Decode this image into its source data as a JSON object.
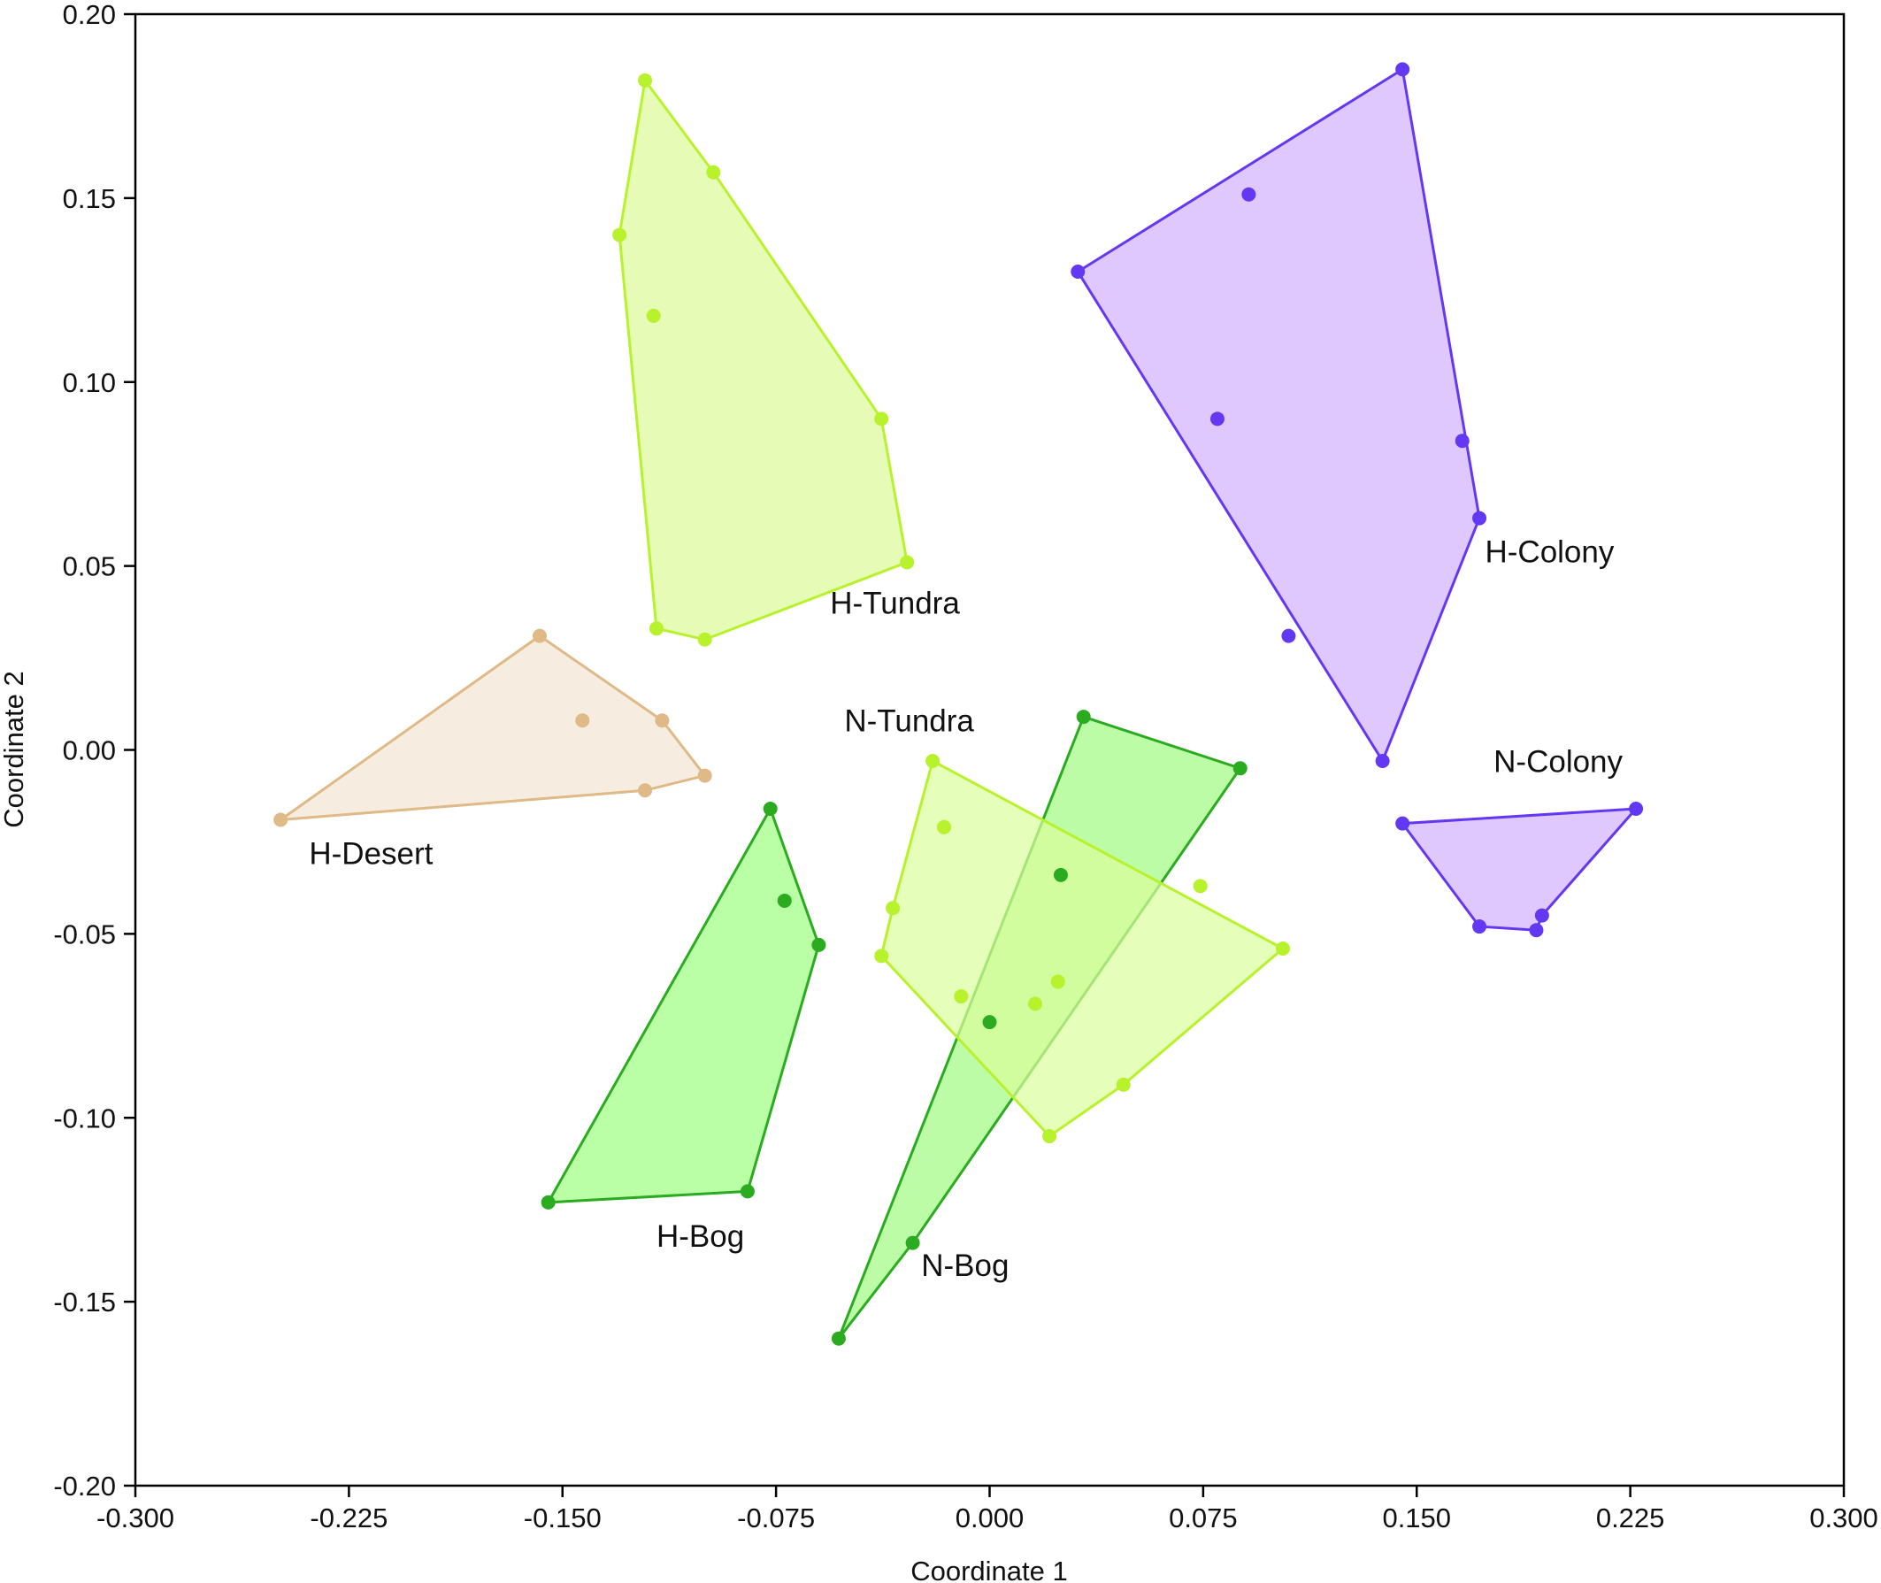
{
  "chart_data": {
    "type": "scatter",
    "title": "",
    "xlabel": "Coordinate 1",
    "ylabel": "Coordinate 2",
    "xlim": [
      -0.3,
      0.3
    ],
    "ylim": [
      -0.2,
      0.2
    ],
    "x_ticks": [
      "-0.300",
      "-0.225",
      "-0.150",
      "-0.075",
      "0.000",
      "0.075",
      "0.150",
      "0.225",
      "0.300"
    ],
    "y_ticks": [
      "-0.20",
      "-0.15",
      "-0.10",
      "-0.05",
      "0.00",
      "0.05",
      "0.10",
      "0.15",
      "0.20"
    ],
    "grid": false,
    "series": [
      {
        "name": "H-Desert",
        "color": "#dfb986",
        "fill": "#f6ece0",
        "hull": [
          [
            -0.249,
            -0.019
          ],
          [
            -0.158,
            0.031
          ],
          [
            -0.115,
            0.008
          ],
          [
            -0.1,
            -0.007
          ],
          [
            -0.121,
            -0.011
          ]
        ],
        "points": [
          [
            -0.249,
            -0.019
          ],
          [
            -0.158,
            0.031
          ],
          [
            -0.143,
            0.008
          ],
          [
            -0.115,
            0.008
          ],
          [
            -0.1,
            -0.007
          ],
          [
            -0.121,
            -0.011
          ]
        ]
      },
      {
        "name": "H-Tundra",
        "color": "#b7f22c",
        "fill": "#e6fcb6",
        "hull": [
          [
            -0.121,
            0.182
          ],
          [
            -0.097,
            0.157
          ],
          [
            -0.038,
            0.09
          ],
          [
            -0.029,
            0.051
          ],
          [
            -0.1,
            0.03
          ],
          [
            -0.117,
            0.033
          ],
          [
            -0.13,
            0.14
          ]
        ],
        "points": [
          [
            -0.121,
            0.182
          ],
          [
            -0.097,
            0.157
          ],
          [
            -0.13,
            0.14
          ],
          [
            -0.118,
            0.118
          ],
          [
            -0.038,
            0.09
          ],
          [
            -0.029,
            0.051
          ],
          [
            -0.117,
            0.033
          ],
          [
            -0.1,
            0.03
          ]
        ]
      },
      {
        "name": "H-Colony",
        "color": "#6238f3",
        "fill": "#dfc8fd",
        "hull": [
          [
            0.031,
            0.13
          ],
          [
            0.145,
            0.185
          ],
          [
            0.172,
            0.063
          ],
          [
            0.138,
            -0.003
          ]
        ],
        "points": [
          [
            0.031,
            0.13
          ],
          [
            0.145,
            0.185
          ],
          [
            0.091,
            0.151
          ],
          [
            0.08,
            0.09
          ],
          [
            0.166,
            0.084
          ],
          [
            0.172,
            0.063
          ],
          [
            0.105,
            0.031
          ],
          [
            0.138,
            -0.003
          ]
        ]
      },
      {
        "name": "N-Colony",
        "color": "#6238f3",
        "fill": "#dfc8fd",
        "hull": [
          [
            0.145,
            -0.02
          ],
          [
            0.227,
            -0.016
          ],
          [
            0.194,
            -0.045
          ],
          [
            0.192,
            -0.049
          ],
          [
            0.172,
            -0.048
          ]
        ],
        "points": [
          [
            0.145,
            -0.02
          ],
          [
            0.227,
            -0.016
          ],
          [
            0.194,
            -0.045
          ],
          [
            0.192,
            -0.049
          ],
          [
            0.172,
            -0.048
          ]
        ]
      },
      {
        "name": "H-Bog",
        "color": "#2aab20",
        "fill": "#bafea6",
        "hull": [
          [
            -0.077,
            -0.016
          ],
          [
            -0.06,
            -0.053
          ],
          [
            -0.085,
            -0.12
          ],
          [
            -0.155,
            -0.123
          ]
        ],
        "points": [
          [
            -0.077,
            -0.016
          ],
          [
            -0.072,
            -0.041
          ],
          [
            -0.06,
            -0.053
          ],
          [
            -0.085,
            -0.12
          ],
          [
            -0.155,
            -0.123
          ]
        ]
      },
      {
        "name": "N-Bog",
        "color": "#2aab20",
        "fill": "#a6fb8a",
        "fill_opacity": 0.75,
        "hull": [
          [
            0.033,
            0.009
          ],
          [
            0.088,
            -0.005
          ],
          [
            -0.027,
            -0.134
          ],
          [
            -0.053,
            -0.16
          ]
        ],
        "points": [
          [
            0.033,
            0.009
          ],
          [
            0.088,
            -0.005
          ],
          [
            0.025,
            -0.034
          ],
          [
            0.0,
            -0.074
          ],
          [
            -0.027,
            -0.134
          ],
          [
            -0.053,
            -0.16
          ]
        ]
      },
      {
        "name": "N-Tundra",
        "color": "#b7f22c",
        "fill": "#dafe9b",
        "fill_opacity": 0.7,
        "hull": [
          [
            -0.02,
            -0.003
          ],
          [
            0.103,
            -0.054
          ],
          [
            0.047,
            -0.091
          ],
          [
            0.021,
            -0.105
          ],
          [
            -0.038,
            -0.056
          ],
          [
            -0.034,
            -0.043
          ]
        ],
        "points": [
          [
            -0.02,
            -0.003
          ],
          [
            -0.016,
            -0.021
          ],
          [
            -0.034,
            -0.043
          ],
          [
            0.074,
            -0.037
          ],
          [
            0.103,
            -0.054
          ],
          [
            -0.038,
            -0.056
          ],
          [
            -0.01,
            -0.067
          ],
          [
            0.016,
            -0.069
          ],
          [
            0.024,
            -0.063
          ],
          [
            0.047,
            -0.091
          ],
          [
            0.021,
            -0.105
          ]
        ]
      }
    ],
    "annotations": [
      {
        "text": "H-Desert",
        "x": -0.239,
        "y": -0.031
      },
      {
        "text": "H-Tundra",
        "x": -0.056,
        "y": 0.037
      },
      {
        "text": "H-Colony",
        "x": 0.174,
        "y": 0.051
      },
      {
        "text": "N-Colony",
        "x": 0.177,
        "y": -0.006
      },
      {
        "text": "N-Tundra",
        "x": -0.051,
        "y": 0.005
      },
      {
        "text": "H-Bog",
        "x": -0.117,
        "y": -0.135
      },
      {
        "text": "N-Bog",
        "x": -0.024,
        "y": -0.143
      }
    ]
  }
}
